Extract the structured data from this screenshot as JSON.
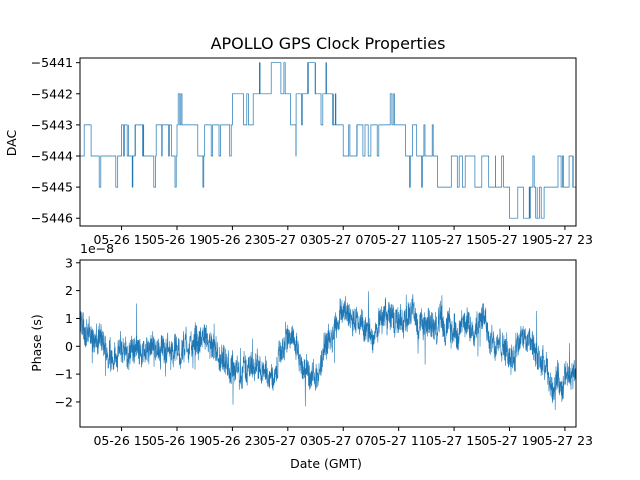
{
  "chart_data": [
    {
      "type": "line",
      "title": "APOLLO GPS Clock Properties",
      "ylabel": "DAC",
      "xlabel": "",
      "x_ticks_hours": [
        15,
        19,
        23,
        27,
        31,
        35,
        39,
        43,
        47
      ],
      "x_tick_labels": [
        "05-26 15",
        "05-26 19",
        "05-26 23",
        "05-27 03",
        "05-27 07",
        "05-27 11",
        "05-27 15",
        "05-27 19",
        "05-27 23"
      ],
      "xlim_hours": [
        12,
        47.8
      ],
      "ylim": [
        -5446.25,
        -5440.85
      ],
      "y_ticks": [
        -5441,
        -5442,
        -5443,
        -5444,
        -5445,
        -5446
      ],
      "y_tick_labels": [
        "−5441",
        "−5442",
        "−5443",
        "−5444",
        "−5445",
        "−5446"
      ],
      "series": [
        {
          "step_hours": [
            12.0,
            12.3,
            12.8,
            13.0,
            14.0,
            15.0,
            15.5,
            16.0,
            16.6,
            17.5,
            18.0,
            18.6,
            19.0,
            19.8,
            20.5,
            21.0,
            22.5,
            23.0,
            23.8,
            24.5,
            25.0,
            25.8,
            26.5,
            27.2,
            27.6,
            28.5,
            29.0,
            30.0,
            30.3,
            31.0,
            32.0,
            32.8,
            33.0,
            34.0,
            35.0,
            35.5,
            36.0,
            36.3,
            36.9,
            37.5,
            37.8,
            38.8,
            39.6,
            39.8,
            40.5,
            41.0,
            41.5,
            42.0,
            43.0,
            43.6,
            44.0,
            44.5,
            45.0,
            45.5,
            46.0,
            46.5,
            46.9,
            47.3,
            47.6
          ],
          "step_values": [
            -5444,
            -5443,
            -5444,
            -5444,
            -5444,
            -5443,
            -5444,
            -5443,
            -5444,
            -5443,
            -5443,
            -5444,
            -5443,
            -5443,
            -5444,
            -5443,
            -5443,
            -5442,
            -5443,
            -5442,
            -5442,
            -5441,
            -5442,
            -5443,
            -5442,
            -5441,
            -5442,
            -5442,
            -5443,
            -5444,
            -5443,
            -5444,
            -5443,
            -5443,
            -5443,
            -5444,
            -5443,
            -5444,
            -5444,
            -5444,
            -5445,
            -5444,
            -5445,
            -5444,
            -5445,
            -5444,
            -5445,
            -5445,
            -5446,
            -5445,
            -5446,
            -5445,
            -5446,
            -5445,
            -5445,
            -5444,
            -5445,
            -5444,
            -5445
          ],
          "note_toggles": "frequent one-count toggles between adjacent levels throughout"
        }
      ],
      "line_color": "#1f77b4"
    },
    {
      "type": "line",
      "title": "",
      "ylabel": "Phase (s)",
      "xlabel": "Date (GMT)",
      "y_scale_label": "1e−8",
      "x_ticks_hours": [
        15,
        19,
        23,
        27,
        31,
        35,
        39,
        43,
        47
      ],
      "x_tick_labels": [
        "05-26 15",
        "05-26 19",
        "05-26 23",
        "05-27 03",
        "05-27 07",
        "05-27 11",
        "05-27 15",
        "05-27 19",
        "05-27 23"
      ],
      "xlim_hours": [
        12,
        47.8
      ],
      "ylim": [
        -2.9,
        3.1
      ],
      "y_ticks": [
        3,
        2,
        1,
        0,
        -1,
        -2
      ],
      "y_tick_labels": [
        "3",
        "2",
        "1",
        "0",
        "−1",
        "−2"
      ],
      "series": [
        {
          "trend_hours": [
            12,
            13,
            14,
            15,
            16,
            17,
            18,
            19,
            20,
            21,
            22,
            23,
            24,
            25,
            26,
            27,
            28,
            29,
            30,
            31,
            32,
            33,
            34,
            35,
            36,
            37,
            38,
            39,
            40,
            41,
            42,
            43,
            44,
            45,
            46,
            47,
            47.8
          ],
          "trend_values": [
            0.8,
            0.3,
            -0.3,
            -0.2,
            0.0,
            -0.3,
            0.0,
            -0.2,
            0.0,
            0.3,
            -0.6,
            -1.0,
            -0.8,
            -0.6,
            -1.2,
            0.4,
            -0.5,
            -1.4,
            0.5,
            1.3,
            1.0,
            0.3,
            1.2,
            0.8,
            1.2,
            0.6,
            0.9,
            0.5,
            0.7,
            1.0,
            0.1,
            -0.3,
            0.2,
            -0.3,
            -1.4,
            -1.2,
            -1.0
          ],
          "noise_amplitude": 0.45
        }
      ],
      "line_color": "#1f77b4"
    }
  ]
}
